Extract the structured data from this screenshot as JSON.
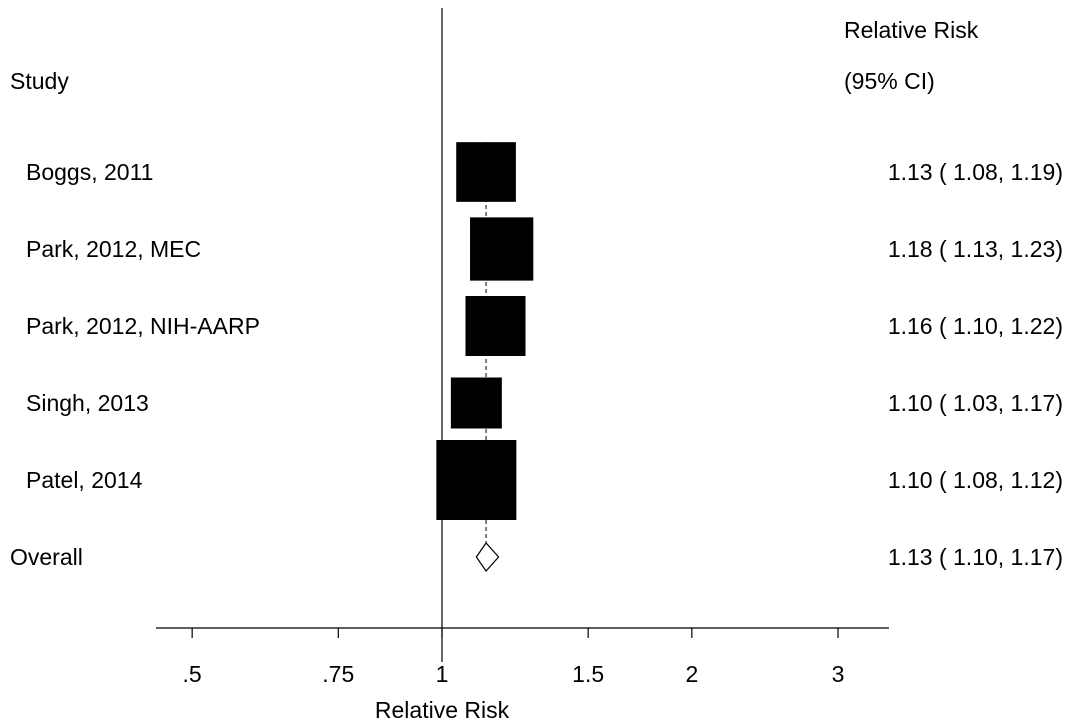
{
  "chart_data": {
    "type": "forest",
    "scale": "log",
    "study_header": "Study",
    "estimate_header_line1": "Relative Risk",
    "estimate_header_line2": "(95% CI)",
    "xlabel": "Relative Risk",
    "x_ticks": [
      {
        "value": 0.5,
        "label": ".5"
      },
      {
        "value": 0.75,
        "label": ".75"
      },
      {
        "value": 1,
        "label": "1"
      },
      {
        "value": 1.5,
        "label": "1.5"
      },
      {
        "value": 2,
        "label": "2"
      },
      {
        "value": 3,
        "label": "3"
      }
    ],
    "reference_line": 1,
    "xlim": [
      0.44,
      3.1
    ],
    "studies": [
      {
        "label": "Boggs, 2011",
        "rr": 1.13,
        "lower": 1.08,
        "upper": 1.19,
        "ci_text": "1.13 ( 1.08, 1.19)",
        "weight": 0.89
      },
      {
        "label": "Park, 2012, MEC",
        "rr": 1.18,
        "lower": 1.13,
        "upper": 1.23,
        "ci_text": "1.18 ( 1.13, 1.23)",
        "weight": 1.0
      },
      {
        "label": "Park, 2012, NIH-AARP",
        "rr": 1.16,
        "lower": 1.1,
        "upper": 1.22,
        "ci_text": "1.16 ( 1.10, 1.22)",
        "weight": 0.9
      },
      {
        "label": "Singh, 2013",
        "rr": 1.1,
        "lower": 1.03,
        "upper": 1.17,
        "ci_text": "1.10 ( 1.03, 1.17)",
        "weight": 0.65
      },
      {
        "label": "Patel, 2014",
        "rr": 1.1,
        "lower": 1.08,
        "upper": 1.12,
        "ci_text": "1.10 ( 1.08, 1.12)",
        "weight": 1.6
      }
    ],
    "overall": {
      "label": "Overall",
      "rr": 1.13,
      "lower": 1.1,
      "upper": 1.17,
      "ci_text": "1.13 ( 1.10, 1.17)"
    }
  }
}
